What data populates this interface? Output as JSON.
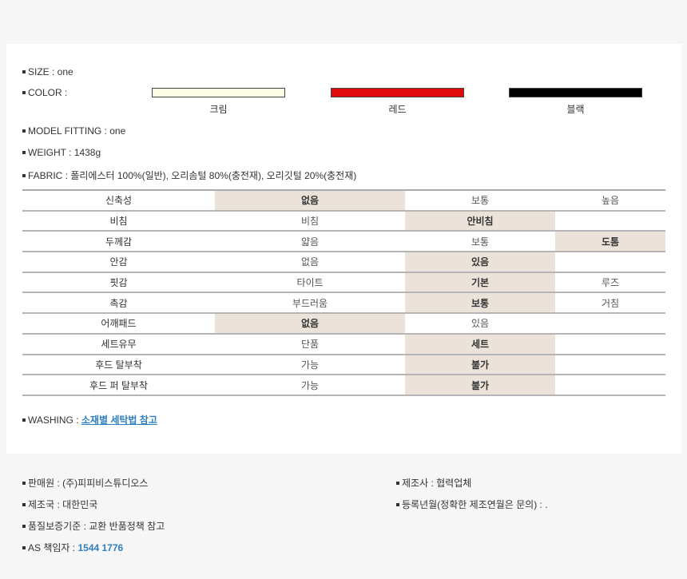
{
  "info": {
    "size": "SIZE : one",
    "color_label": "COLOR :",
    "model_fitting": "MODEL FITTING : one",
    "weight": "WEIGHT : 1438g",
    "fabric": "FABRIC : 폴리에스터 100%(일반), 오리솜털 80%(충전재), 오리깃털 20%(충전재)"
  },
  "colors": [
    {
      "name": "크림",
      "hex": "#fdfde6"
    },
    {
      "name": "레드",
      "hex": "#e00c0c"
    },
    {
      "name": "블랙",
      "hex": "#000000"
    }
  ],
  "table": {
    "highlight_color": "#ebe3d9",
    "rows": [
      {
        "label": "신축성",
        "options": [
          "없음",
          "보통",
          "높음"
        ],
        "selected": 0
      },
      {
        "label": "비침",
        "options": [
          "비침",
          "안비침",
          ""
        ],
        "selected": 1
      },
      {
        "label": "두께감",
        "options": [
          "얇음",
          "보통",
          "도톰"
        ],
        "selected": 2
      },
      {
        "label": "안감",
        "options": [
          "없음",
          "있음",
          ""
        ],
        "selected": 1
      },
      {
        "label": "핏감",
        "options": [
          "타이트",
          "기본",
          "루즈"
        ],
        "selected": 1
      },
      {
        "label": "촉감",
        "options": [
          "부드러움",
          "보통",
          "거침"
        ],
        "selected": 1
      },
      {
        "label": "어깨패드",
        "options": [
          "없음",
          "있음",
          ""
        ],
        "selected": 0
      },
      {
        "label": "세트유무",
        "options": [
          "단품",
          "세트",
          ""
        ],
        "selected": 1
      },
      {
        "label": "후드 탈부착",
        "options": [
          "가능",
          "불가",
          ""
        ],
        "selected": 1
      },
      {
        "label": "후드 퍼 탈부착",
        "options": [
          "가능",
          "불가",
          ""
        ],
        "selected": 1
      }
    ]
  },
  "washing": {
    "label": "WASHING : ",
    "link": "소재별 세탁법 참고"
  },
  "footer": {
    "seller": "판매원 : (주)피피비스튜디오스",
    "country": "제조국 : 대한민국",
    "quality": "품질보증기준 : 교환 반품정책 참고",
    "as_label": "AS 책임자 : ",
    "as_phone": "1544 1776",
    "maker": "제조사 : 협력업체",
    "reg_date": "등록년월(정확한 제조연월은 문의) : ."
  }
}
